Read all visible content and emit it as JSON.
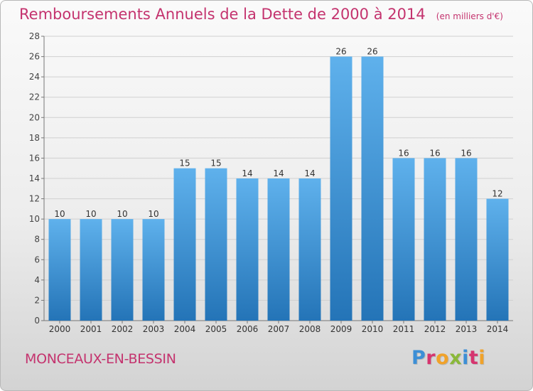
{
  "header": {
    "title": "Remboursements Annuels de la Dette de 2000 à 2014",
    "unit": "(en milliers d'€)"
  },
  "footer": {
    "commune": "MONCEAUX-EN-BESSIN",
    "logo_text": "Proxiti",
    "logo_colors": [
      "#3c8fd6",
      "#d6356f",
      "#f0a22a",
      "#8ab83a",
      "#3c8fd6",
      "#d6356f",
      "#f0a22a"
    ]
  },
  "colors": {
    "title": "#c4336e",
    "bar_top": "#5fb1ec",
    "bar_bottom": "#2474b7",
    "grid": "#d0d0d0"
  },
  "chart_data": {
    "type": "bar",
    "title": "Remboursements Annuels de la Dette de 2000 à 2014",
    "categories": [
      "2000",
      "2001",
      "2002",
      "2003",
      "2004",
      "2005",
      "2006",
      "2007",
      "2008",
      "2009",
      "2010",
      "2011",
      "2012",
      "2013",
      "2014"
    ],
    "values": [
      10,
      10,
      10,
      10,
      15,
      15,
      14,
      14,
      14,
      26,
      26,
      16,
      16,
      16,
      12
    ],
    "ylim": [
      0,
      28
    ],
    "yticks": [
      0,
      2,
      4,
      6,
      8,
      10,
      12,
      14,
      16,
      18,
      20,
      22,
      24,
      26,
      28
    ],
    "grid": true,
    "data_labels": true
  }
}
